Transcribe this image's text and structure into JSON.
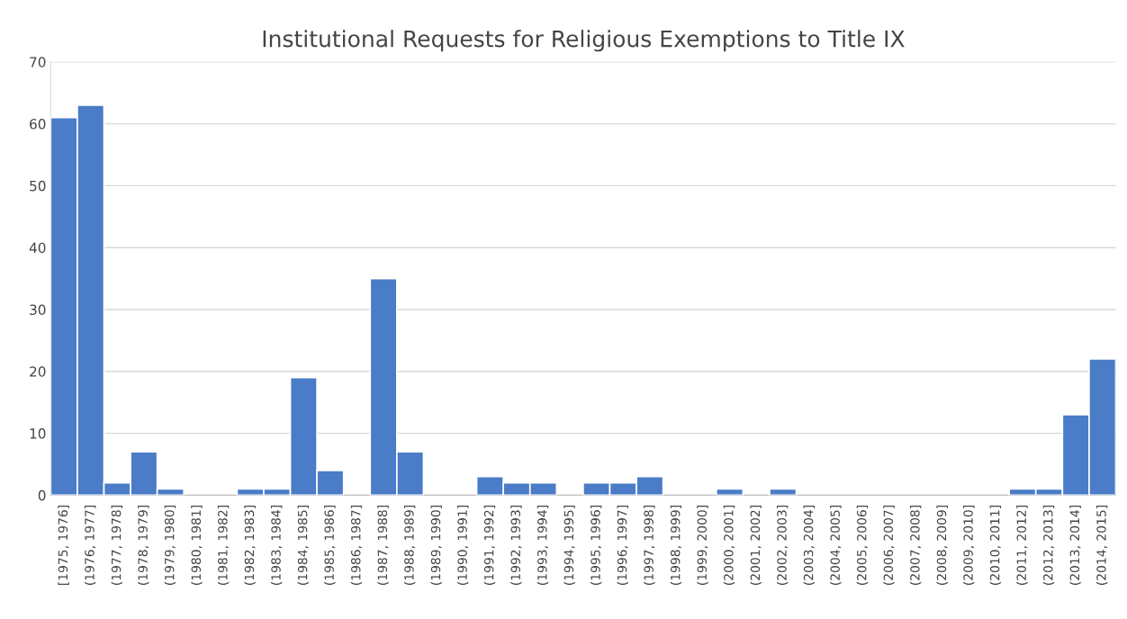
{
  "chart_data": {
    "type": "bar",
    "title": "Institutional Requests for Religious Exemptions to Title IX",
    "categories": [
      "[1975, 1976]",
      "(1976, 1977]",
      "(1977, 1978]",
      "(1978, 1979]",
      "(1979, 1980]",
      "(1980, 1981]",
      "(1981, 1982]",
      "(1982, 1983]",
      "(1983, 1984]",
      "(1984, 1985]",
      "(1985, 1986]",
      "(1986, 1987]",
      "(1987, 1988]",
      "(1988, 1989]",
      "(1989, 1990]",
      "(1990, 1991]",
      "(1991, 1992]",
      "(1992, 1993]",
      "(1993, 1994]",
      "(1994, 1995]",
      "(1995, 1996]",
      "(1996, 1997]",
      "(1997, 1998]",
      "(1998, 1999]",
      "(1999, 2000]",
      "(2000, 2001]",
      "(2001, 2002]",
      "(2002, 2003]",
      "(2003, 2004]",
      "(2004, 2005]",
      "(2005, 2006]",
      "(2006, 2007]",
      "(2007, 2008]",
      "(2008, 2009]",
      "(2009, 2010]",
      "(2010, 2011]",
      "(2011, 2012]",
      "(2012, 2013]",
      "(2013, 2014]",
      "(2014, 2015]"
    ],
    "values": [
      61,
      63,
      2,
      7,
      1,
      0,
      0,
      1,
      1,
      19,
      4,
      0,
      35,
      7,
      0,
      0,
      3,
      2,
      2,
      0,
      2,
      2,
      3,
      0,
      0,
      1,
      0,
      1,
      0,
      0,
      0,
      0,
      0,
      0,
      0,
      0,
      1,
      1,
      13,
      22
    ],
    "color": "#4a7cc7",
    "ylim": [
      0,
      70
    ],
    "yticks": [
      0,
      10,
      20,
      30,
      40,
      50,
      60,
      70
    ],
    "grid": "y"
  }
}
